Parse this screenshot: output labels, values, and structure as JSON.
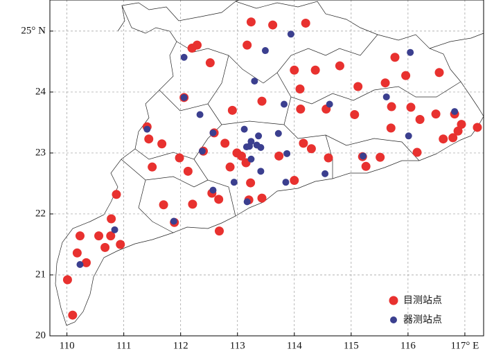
{
  "chart_data": {
    "type": "scatter",
    "xlim": [
      109.7,
      117.33
    ],
    "ylim": [
      20,
      25.51
    ],
    "xticks": [
      110,
      111,
      112,
      113,
      114,
      115,
      116,
      {
        "value": 117,
        "label": "117° E"
      }
    ],
    "yticks": [
      20,
      21,
      22,
      23,
      24,
      {
        "value": 25,
        "label": "25° N"
      }
    ],
    "grid": true,
    "legend": "lower right",
    "series": [
      {
        "name": "目测站点",
        "color": "#e8312f",
        "x": [
          113.24,
          113.62,
          114.2,
          113.17,
          112.29,
          112.2,
          112.52,
          114.0,
          114.37,
          114.8,
          115.77,
          115.96,
          116.55,
          114.1,
          115.12,
          115.6,
          112.06,
          113.43,
          112.91,
          114.11,
          114.56,
          115.06,
          115.71,
          116.05,
          111.41,
          111.44,
          111.67,
          112.59,
          112.78,
          112.4,
          112.99,
          113.15,
          111.5,
          111.98,
          112.13,
          112.87,
          113.23,
          113.07,
          113.73,
          114.16,
          114.3,
          114.6,
          115.7,
          116.21,
          116.49,
          116.82,
          116.94,
          116.88,
          116.79,
          117.22,
          116.62,
          116.16,
          115.51,
          115.2,
          115.26,
          114.0,
          113.43,
          113.2,
          112.67,
          112.55,
          112.21,
          111.7,
          111.89,
          112.68,
          110.87,
          110.78,
          110.77,
          110.67,
          110.23,
          110.18,
          110.34,
          110.94,
          110.01,
          110.1,
          110.56
        ],
        "y": [
          25.15,
          25.1,
          25.13,
          24.77,
          24.77,
          24.72,
          24.48,
          24.36,
          24.36,
          24.43,
          24.57,
          24.27,
          24.32,
          24.05,
          24.09,
          24.15,
          23.91,
          23.85,
          23.7,
          23.72,
          23.72,
          23.63,
          23.76,
          23.75,
          23.43,
          23.23,
          23.15,
          23.33,
          23.16,
          23.03,
          23.0,
          22.84,
          22.77,
          22.92,
          22.7,
          22.77,
          22.51,
          22.95,
          22.95,
          23.16,
          23.07,
          22.92,
          23.41,
          23.55,
          23.64,
          23.64,
          23.47,
          23.36,
          23.25,
          23.42,
          23.23,
          23.01,
          22.93,
          22.94,
          22.78,
          22.55,
          22.26,
          22.23,
          22.24,
          22.34,
          22.16,
          22.15,
          21.86,
          21.72,
          22.32,
          21.92,
          21.64,
          21.45,
          21.64,
          21.36,
          21.2,
          21.5,
          20.92,
          20.34,
          21.64
        ]
      },
      {
        "name": "器测站点",
        "color": "#3b3f8f",
        "x": [
          113.94,
          113.49,
          112.06,
          113.3,
          112.06,
          113.82,
          114.62,
          115.62,
          116.04,
          111.41,
          112.34,
          112.57,
          112.38,
          113.12,
          113.21,
          113.37,
          113.24,
          113.16,
          113.34,
          113.41,
          113.72,
          113.24,
          113.41,
          113.87,
          115.21,
          116.01,
          116.82,
          113.85,
          114.54,
          112.94,
          112.57,
          113.17,
          111.88,
          110.84,
          110.23
        ],
        "y": [
          24.95,
          24.68,
          24.57,
          24.18,
          23.91,
          23.8,
          23.8,
          23.92,
          24.65,
          23.39,
          23.63,
          23.33,
          23.03,
          23.39,
          23.11,
          23.28,
          23.19,
          23.1,
          23.13,
          23.09,
          23.32,
          22.9,
          22.7,
          22.99,
          22.95,
          23.28,
          23.68,
          22.52,
          22.66,
          22.52,
          22.39,
          22.2,
          21.88,
          21.74,
          21.17
        ]
      }
    ]
  }
}
